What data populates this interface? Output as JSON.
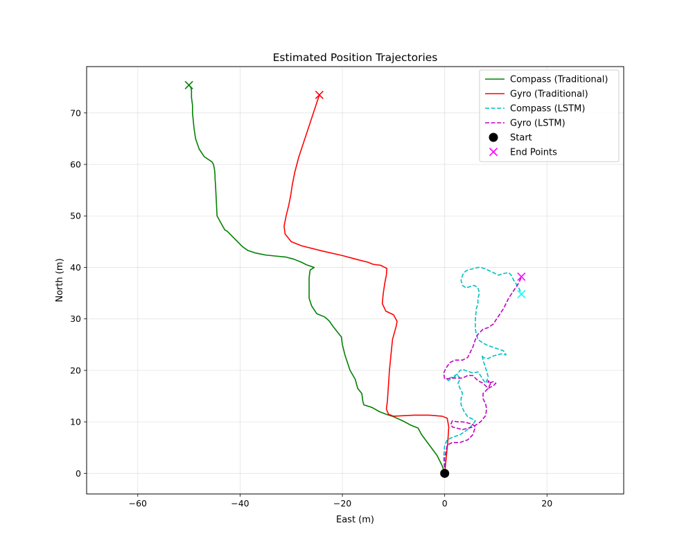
{
  "chart_data": {
    "type": "line",
    "title": "Estimated Position Trajectories",
    "xlabel": "East (m)",
    "ylabel": "North (m)",
    "xlim": [
      -70,
      35
    ],
    "ylim": [
      -4,
      79
    ],
    "xticks": [
      -60,
      -40,
      -20,
      0,
      20
    ],
    "yticks": [
      0,
      10,
      20,
      30,
      40,
      50,
      60,
      70
    ],
    "grid": true,
    "legend_position": "top-right",
    "series": [
      {
        "name": "Compass (Traditional)",
        "color": "#008000",
        "style": "solid",
        "x": [
          0,
          -0.5,
          -1.5,
          -3,
          -4.5,
          -5.2,
          -6.5,
          -8.2,
          -10,
          -11.5,
          -12.8,
          -14.2,
          -15.8,
          -16,
          -16.2,
          -17,
          -17.5,
          -18.5,
          -19,
          -19.5,
          -20,
          -20.2,
          -21,
          -21.8,
          -22.5,
          -23,
          -23.5,
          -25,
          -26,
          -26.5,
          -26.5,
          -26.5,
          -26.3,
          -25.5,
          -27,
          -28,
          -29.5,
          -31,
          -33,
          -35,
          -37,
          -38.5,
          -39.5,
          -40.5,
          -41.5,
          -42.5,
          -43,
          -43.5,
          -44.5,
          -44.6,
          -44.7,
          -44.8,
          -44.9,
          -44.9,
          -45,
          -45.2,
          -45.5,
          -47,
          -48,
          -48.7,
          -49,
          -49.2,
          -49.3,
          -49.3,
          -49.5,
          -49.5,
          -49.6,
          -50
        ],
        "y": [
          0,
          1.5,
          3.5,
          5.5,
          7.5,
          8.8,
          9.3,
          10.2,
          11,
          11.5,
          12,
          12.8,
          13.3,
          14,
          15.5,
          16.5,
          18.3,
          20,
          21.5,
          23,
          25,
          26.5,
          27.5,
          28.5,
          29.5,
          30,
          30.4,
          31,
          32.5,
          34,
          36,
          38,
          39.5,
          40,
          40.5,
          41,
          41.6,
          42,
          42.2,
          42.4,
          42.8,
          43.3,
          44,
          45,
          46,
          47,
          47.3,
          48.2,
          50,
          52,
          54,
          56,
          57.3,
          58,
          59,
          60,
          60.5,
          61.5,
          63,
          65,
          67,
          69,
          70,
          71.5,
          73,
          74.3,
          74.9,
          75.4
        ]
      },
      {
        "name": "Gyro (Traditional)",
        "color": "#ff0000",
        "style": "solid",
        "x": [
          0,
          0.3,
          0.6,
          0.8,
          0.5,
          -0.5,
          -3,
          -6,
          -8,
          -10,
          -11,
          -11.4,
          -11.2,
          -11,
          -10.8,
          -10.5,
          -10.2,
          -9.5,
          -9.3,
          -10,
          -11.5,
          -12.2,
          -12,
          -11.7,
          -11.4,
          -11.3,
          -12.5,
          -14,
          -15,
          -17,
          -20,
          -24,
          -28,
          -30,
          -31.2,
          -31.4,
          -31,
          -30.5,
          -30.1,
          -29.8,
          -29.3,
          -28.5,
          -27.5,
          -26.5,
          -25.5,
          -24.5
        ],
        "y": [
          0,
          3,
          6,
          9,
          10.7,
          11.1,
          11.3,
          11.3,
          11.2,
          11.1,
          11.5,
          12.5,
          14,
          17,
          20,
          23,
          26,
          28.5,
          29.5,
          30.8,
          31.5,
          33,
          35,
          37,
          38.5,
          39.8,
          40.4,
          40.6,
          41,
          41.5,
          42.3,
          43.2,
          44.2,
          45,
          46.5,
          48,
          50,
          52,
          54,
          56,
          58.5,
          61.5,
          64.5,
          67.5,
          70.5,
          73.5
        ]
      },
      {
        "name": "Compass (LSTM)",
        "color": "#00bfbf",
        "style": "dashed",
        "x": [
          0,
          -0.2,
          0,
          0.5,
          1.5,
          3,
          4.5,
          5.5,
          6,
          5.5,
          4.5,
          3.8,
          3.2,
          3.2,
          3.5,
          3,
          2.6,
          3,
          2.8,
          2.5,
          1.5,
          0.7,
          0.5,
          1.5,
          2.5,
          3,
          3.5,
          4,
          5.5,
          6.5,
          7,
          7.5,
          8,
          8.2,
          8.5,
          8,
          7.5,
          7.3,
          7.5,
          8.5,
          9.5,
          11,
          12,
          11.5,
          10,
          8.5,
          7.5,
          6.5,
          6.2,
          6,
          6,
          6.2,
          6.5,
          6.5,
          6.8,
          6.5,
          5.8,
          5,
          4.2,
          3.5,
          3.2,
          3.5,
          4,
          4.5,
          5.8,
          6.5,
          7,
          8,
          9.5,
          10.5,
          11.5,
          12.5,
          13,
          13.5,
          14.5,
          15
        ],
        "y": [
          0,
          3,
          5.5,
          6.5,
          7,
          7.5,
          8.5,
          9.5,
          10.2,
          10.5,
          11,
          12,
          13.3,
          14.5,
          15.5,
          16.5,
          17.5,
          18.3,
          18.8,
          19,
          18.5,
          18,
          18.3,
          18.7,
          19.3,
          20,
          20.2,
          20,
          19.5,
          19.7,
          19,
          18.2,
          17.5,
          17.9,
          18.8,
          20.5,
          22,
          23,
          22.5,
          22.3,
          22.8,
          23.2,
          23,
          23.8,
          24.3,
          24.8,
          25.3,
          26,
          27,
          28,
          30,
          32,
          33,
          34,
          35,
          36,
          36.5,
          36.3,
          36,
          36.5,
          37.5,
          38.5,
          39.2,
          39.5,
          39.8,
          40,
          40,
          39.7,
          39,
          38.5,
          38.8,
          39,
          38.5,
          37.5,
          36,
          34.8
        ]
      },
      {
        "name": "Gyro (LSTM)",
        "color": "#bf00bf",
        "style": "dashed",
        "x": [
          0,
          0,
          0.5,
          1.5,
          3,
          4.5,
          5.5,
          6,
          5.5,
          4.5,
          3.5,
          2.5,
          1.5,
          1.2,
          1.5,
          3.5,
          5.5,
          7,
          8,
          8.2,
          8,
          7.5,
          7.5,
          8.5,
          9,
          8.5,
          8.5,
          9.5,
          10,
          9.5,
          8.5,
          7.5,
          6.5,
          5.5,
          4.5,
          3.5,
          2.5,
          1.5,
          0,
          -0.2,
          0.3,
          1,
          2,
          3,
          3.5,
          4.5,
          5,
          5.5,
          6,
          6.5,
          7.5,
          8.5,
          9.5,
          10.5,
          11.5,
          12.5,
          13.5,
          14.5,
          15
        ],
        "y": [
          0,
          3,
          5.5,
          6,
          6,
          6.5,
          7.5,
          9,
          9.5,
          9.8,
          10,
          10,
          10.2,
          9.5,
          9,
          8.5,
          9,
          10,
          11.2,
          12.5,
          13.5,
          14.5,
          15.5,
          16.5,
          17.5,
          18,
          17.5,
          17.8,
          17.5,
          17,
          16.5,
          17.5,
          18,
          19,
          19,
          18.5,
          18.5,
          18.5,
          18.3,
          19.5,
          20.5,
          21.5,
          22,
          22,
          22,
          22.5,
          23.5,
          24.5,
          26,
          27,
          28,
          28.3,
          29,
          30.5,
          32,
          34,
          35.5,
          37,
          38.2
        ]
      }
    ],
    "markers": {
      "start": {
        "name": "Start",
        "x": 0,
        "y": 0,
        "color": "#000000"
      },
      "end_points": {
        "name": "End Points",
        "legend_color": "#ff00ff",
        "points": [
          {
            "x": -50,
            "y": 75.4,
            "color": "#008000"
          },
          {
            "x": -24.5,
            "y": 73.5,
            "color": "#ff0000"
          },
          {
            "x": 15,
            "y": 34.8,
            "color": "#00ffff"
          },
          {
            "x": 15,
            "y": 38.2,
            "color": "#ff00ff"
          }
        ]
      }
    }
  }
}
